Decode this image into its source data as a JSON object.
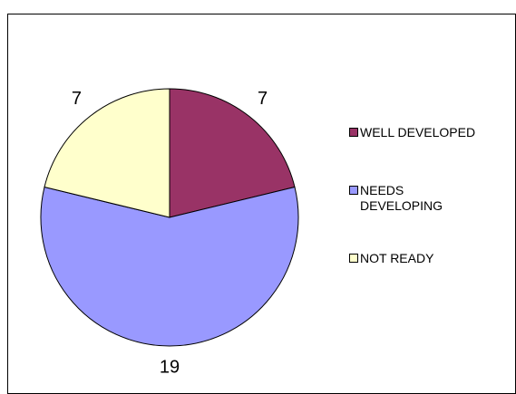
{
  "chart_data": {
    "type": "pie",
    "categories": [
      "WELL DEVELOPED",
      "NEEDS DEVELOPING",
      "NOT READY"
    ],
    "values": [
      7,
      19,
      7
    ],
    "colors": [
      "#993366",
      "#9999ff",
      "#ffffcc"
    ],
    "legend": "right"
  }
}
